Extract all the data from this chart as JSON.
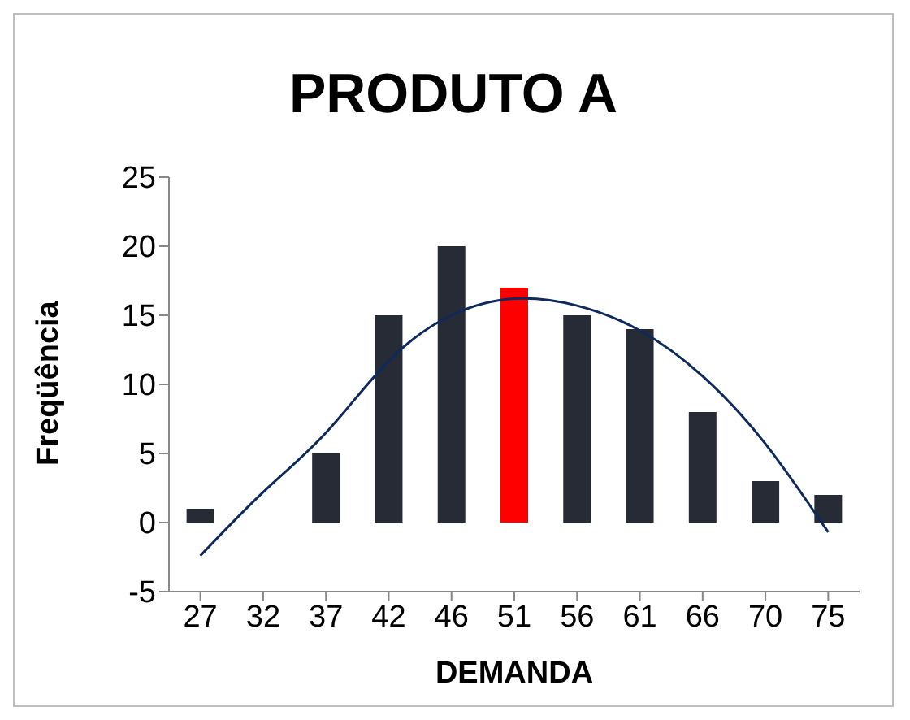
{
  "chart_data": {
    "type": "bar",
    "title": "PRODUTO A",
    "xlabel": "DEMANDA",
    "ylabel": "Freqüência",
    "categories": [
      "27",
      "32",
      "37",
      "42",
      "46",
      "51",
      "56",
      "61",
      "66",
      "70",
      "75"
    ],
    "series": [
      {
        "values": [
          1,
          0,
          5,
          15,
          20,
          17,
          15,
          14,
          8,
          3,
          2
        ],
        "colors": [
          "#262b35",
          "#262b35",
          "#262b35",
          "#262b35",
          "#262b35",
          "#ff0000",
          "#262b35",
          "#262b35",
          "#262b35",
          "#262b35",
          "#262b35"
        ]
      },
      {
        "type": "line",
        "x": [
          "27",
          "32",
          "37",
          "42",
          "46",
          "51",
          "56",
          "61",
          "66",
          "70",
          "75"
        ],
        "values": [
          -2.4,
          2.2,
          6.5,
          11.7,
          15,
          16.2,
          15.7,
          13.9,
          10.6,
          5.7,
          -0.7
        ],
        "color": "#0e2a5c"
      }
    ],
    "ylim": [
      -5,
      25
    ],
    "yticks": [
      -5,
      0,
      5,
      10,
      15,
      20,
      25
    ],
    "grid": false,
    "legend": false,
    "marker": "none"
  }
}
